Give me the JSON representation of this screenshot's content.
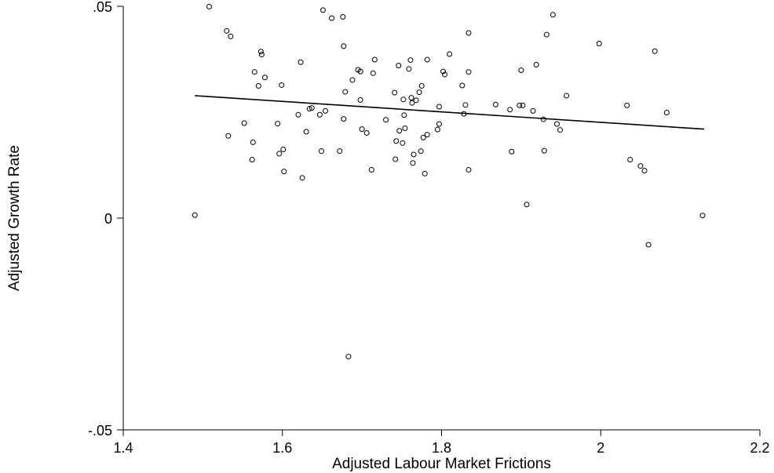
{
  "chart_data": {
    "type": "scatter",
    "title": "",
    "xlabel": "Adjusted Labour Market Frictions",
    "ylabel": "Adjusted Growth Rate",
    "xlim": [
      1.4,
      2.2
    ],
    "ylim": [
      -0.05,
      0.05
    ],
    "xticks": [
      1.4,
      1.6,
      1.8,
      2,
      2.2
    ],
    "xtick_labels": [
      "1.4",
      "1.6",
      "1.8",
      "2",
      "2.2"
    ],
    "yticks": [
      -0.05,
      0,
      0.05
    ],
    "ytick_labels": [
      "-.05",
      "0",
      ".05"
    ],
    "grid": false,
    "series": [
      {
        "marker": "hollow-circle",
        "points": [
          [
            1.49,
            0.0007
          ],
          [
            1.508,
            0.0499
          ],
          [
            1.53,
            0.0442
          ],
          [
            1.532,
            0.0194
          ],
          [
            1.535,
            0.0429
          ],
          [
            1.552,
            0.0224
          ],
          [
            1.562,
            0.0138
          ],
          [
            1.563,
            0.0179
          ],
          [
            1.565,
            0.0345
          ],
          [
            1.57,
            0.0312
          ],
          [
            1.573,
            0.0393
          ],
          [
            1.574,
            0.0386
          ],
          [
            1.578,
            0.0332
          ],
          [
            1.594,
            0.0223
          ],
          [
            1.596,
            0.0152
          ],
          [
            1.599,
            0.0314
          ],
          [
            1.601,
            0.0162
          ],
          [
            1.602,
            0.011
          ],
          [
            1.613,
            0.0539
          ],
          [
            1.62,
            0.0244
          ],
          [
            1.623,
            0.0368
          ],
          [
            1.625,
            0.0095
          ],
          [
            1.63,
            0.0204
          ],
          [
            1.634,
            0.0258
          ],
          [
            1.637,
            0.026
          ],
          [
            1.647,
            0.0244
          ],
          [
            1.649,
            0.0158
          ],
          [
            1.651,
            0.0491
          ],
          [
            1.654,
            0.0253
          ],
          [
            1.662,
            0.0472
          ],
          [
            1.672,
            0.0158
          ],
          [
            1.676,
            0.0475
          ],
          [
            1.677,
            0.0406
          ],
          [
            1.677,
            0.0234
          ],
          [
            1.679,
            0.0298
          ],
          [
            1.683,
            -0.0327
          ],
          [
            1.688,
            0.0326
          ],
          [
            1.695,
            0.035
          ],
          [
            1.698,
            0.0346
          ],
          [
            1.698,
            0.0279
          ],
          [
            1.7,
            0.021
          ],
          [
            1.706,
            0.0201
          ],
          [
            1.712,
            0.0114
          ],
          [
            1.714,
            0.0342
          ],
          [
            1.716,
            0.0374
          ],
          [
            1.73,
            0.0232
          ],
          [
            1.741,
            0.0296
          ],
          [
            1.742,
            0.0139
          ],
          [
            1.743,
            0.0182
          ],
          [
            1.746,
            0.036
          ],
          [
            1.747,
            0.0206
          ],
          [
            1.751,
            0.0177
          ],
          [
            1.752,
            0.028
          ],
          [
            1.753,
            0.0243
          ],
          [
            1.754,
            0.0212
          ],
          [
            1.759,
            0.0352
          ],
          [
            1.761,
            0.0373
          ],
          [
            1.762,
            0.0284
          ],
          [
            1.763,
            0.0272
          ],
          [
            1.764,
            0.013
          ],
          [
            1.765,
            0.015
          ],
          [
            1.768,
            0.0278
          ],
          [
            1.772,
            0.0297
          ],
          [
            1.774,
            0.0158
          ],
          [
            1.775,
            0.0312
          ],
          [
            1.777,
            0.019
          ],
          [
            1.779,
            0.0105
          ],
          [
            1.782,
            0.0197
          ],
          [
            1.782,
            0.0374
          ],
          [
            1.795,
            0.0209
          ],
          [
            1.797,
            0.0222
          ],
          [
            1.797,
            0.0263
          ],
          [
            1.802,
            0.0346
          ],
          [
            1.804,
            0.0339
          ],
          [
            1.81,
            0.0387
          ],
          [
            1.826,
            0.0313
          ],
          [
            1.828,
            0.0246
          ],
          [
            1.83,
            0.0267
          ],
          [
            1.834,
            0.0437
          ],
          [
            1.834,
            0.0345
          ],
          [
            1.834,
            0.0114
          ],
          [
            1.868,
            0.0268
          ],
          [
            1.886,
            0.0256
          ],
          [
            1.888,
            0.0157
          ],
          [
            1.898,
            0.0266
          ],
          [
            1.9,
            0.0349
          ],
          [
            1.902,
            0.0266
          ],
          [
            1.907,
            0.0032
          ],
          [
            1.915,
            0.0253
          ],
          [
            1.919,
            0.0362
          ],
          [
            1.928,
            0.0233
          ],
          [
            1.929,
            0.0159
          ],
          [
            1.932,
            0.0433
          ],
          [
            1.94,
            0.048
          ],
          [
            1.945,
            0.0222
          ],
          [
            1.949,
            0.0208
          ],
          [
            1.957,
            0.0289
          ],
          [
            1.998,
            0.0412
          ],
          [
            2.033,
            0.0266
          ],
          [
            2.037,
            0.0138
          ],
          [
            2.05,
            0.0123
          ],
          [
            2.055,
            0.0112
          ],
          [
            2.06,
            -0.0063
          ],
          [
            2.068,
            0.0394
          ],
          [
            2.083,
            0.0249
          ],
          [
            2.128,
            0.0006
          ]
        ]
      }
    ],
    "fit_line": {
      "x": [
        1.49,
        2.13
      ],
      "y": [
        0.0289,
        0.021
      ]
    }
  }
}
